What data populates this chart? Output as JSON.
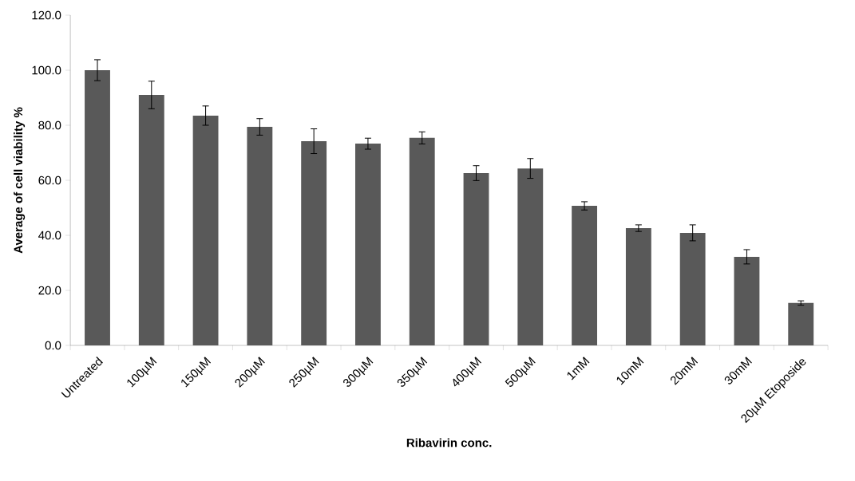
{
  "chart_data": {
    "type": "bar",
    "xlabel": "Ribavirin conc.",
    "ylabel": "Average of cell viability %",
    "categories": [
      "Untreated",
      "100µM",
      "150µM",
      "200µM",
      "250µM",
      "300µM",
      "350µM",
      "400µM",
      "500µM",
      "1mM",
      "10mM",
      "20mM",
      "30mM",
      "20µM Etoposide"
    ],
    "values": [
      100.0,
      91.0,
      83.5,
      79.4,
      74.2,
      73.3,
      75.4,
      62.6,
      64.3,
      50.7,
      42.6,
      40.9,
      32.2,
      15.4
    ],
    "errors": [
      3.8,
      5.0,
      3.5,
      3.0,
      4.5,
      2.0,
      2.2,
      2.7,
      3.6,
      1.5,
      1.2,
      2.9,
      2.6,
      0.8
    ],
    "color": "#595959",
    "ylim": [
      0,
      120
    ],
    "yticks": [
      {
        "value": 0,
        "label": "0.0"
      },
      {
        "value": 20,
        "label": "20.0"
      },
      {
        "value": 40,
        "label": "40.0"
      },
      {
        "value": 60,
        "label": "60.0"
      },
      {
        "value": 80,
        "label": "80.0"
      },
      {
        "value": 100,
        "label": "100.0"
      },
      {
        "value": 120,
        "label": "120.0"
      }
    ]
  }
}
